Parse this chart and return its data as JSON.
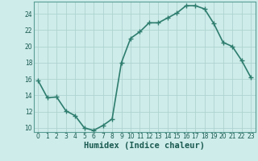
{
  "title": "",
  "xlabel": "Humidex (Indice chaleur)",
  "x_values": [
    0,
    1,
    2,
    3,
    4,
    5,
    6,
    7,
    8,
    9,
    10,
    11,
    12,
    13,
    14,
    15,
    16,
    17,
    18,
    19,
    20,
    21,
    22,
    23
  ],
  "y_values": [
    15.8,
    13.7,
    13.8,
    12.1,
    11.5,
    10.0,
    9.7,
    10.3,
    11.1,
    18.0,
    21.0,
    21.8,
    22.9,
    22.9,
    23.5,
    24.1,
    25.0,
    25.0,
    24.6,
    22.8,
    20.5,
    20.0,
    18.3,
    16.2
  ],
  "line_color": "#2e7d6e",
  "marker": "+",
  "marker_size": 4,
  "bg_color": "#ceecea",
  "grid_color": "#aed4d0",
  "ylim": [
    9.5,
    25.5
  ],
  "yticks": [
    10,
    12,
    14,
    16,
    18,
    20,
    22,
    24
  ],
  "xlim": [
    -0.5,
    23.5
  ],
  "xticks": [
    0,
    1,
    2,
    3,
    4,
    5,
    6,
    7,
    8,
    9,
    10,
    11,
    12,
    13,
    14,
    15,
    16,
    17,
    18,
    19,
    20,
    21,
    22,
    23
  ],
  "tick_fontsize": 5.5,
  "xlabel_fontsize": 7.5,
  "line_width": 1.2,
  "marker_edge_width": 1.0
}
